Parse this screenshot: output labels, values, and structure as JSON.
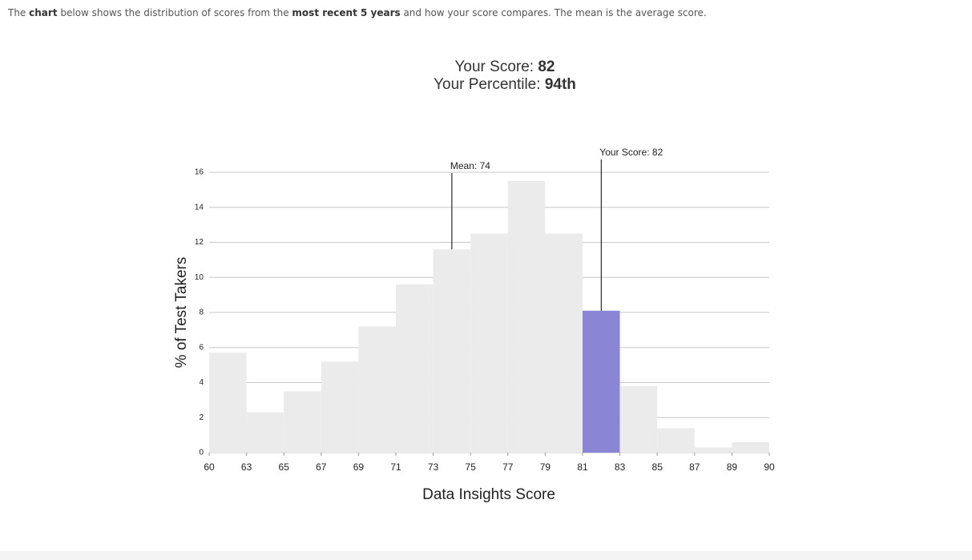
{
  "intro": [
    "The ",
    "chart",
    " below shows the distribution of scores from the ",
    "most recent 5 years",
    " and how your score compares. The mean is the average score."
  ],
  "summary": {
    "score_label": "Your Score: ",
    "score": "82",
    "percentile_label": "Your Percentile: ",
    "percentile": "94th"
  },
  "chart_data": {
    "type": "histogram",
    "bins": [
      60,
      63,
      65,
      67,
      69,
      71,
      73,
      75,
      77,
      79,
      81,
      83,
      85,
      87,
      89,
      90
    ],
    "values": [
      5.7,
      2.3,
      3.5,
      5.2,
      7.2,
      9.6,
      11.6,
      12.5,
      15.5,
      12.5,
      8.1,
      3.8,
      1.4,
      0.3,
      0.6
    ],
    "colors": [
      "#ebebeb",
      "#ebebeb",
      "#ebebeb",
      "#ebebeb",
      "#ebebeb",
      "#ebebeb",
      "#ebebeb",
      "#ebebeb",
      "#ebebeb",
      "#ebebeb",
      "#8b85d6",
      "#ebebeb",
      "#ebebeb",
      "#ebebeb",
      "#ebebeb"
    ],
    "ylim": [
      0,
      16
    ],
    "yticks": [
      0,
      2,
      4,
      6,
      8,
      10,
      12,
      14,
      16
    ],
    "grid": true,
    "x_label": "Data Insights Score",
    "y_label": "% of Test Takers",
    "annotations": [
      {
        "text": "Mean: 74",
        "x": 74
      },
      {
        "text": "Your Score: 82",
        "x": 82
      }
    ]
  }
}
